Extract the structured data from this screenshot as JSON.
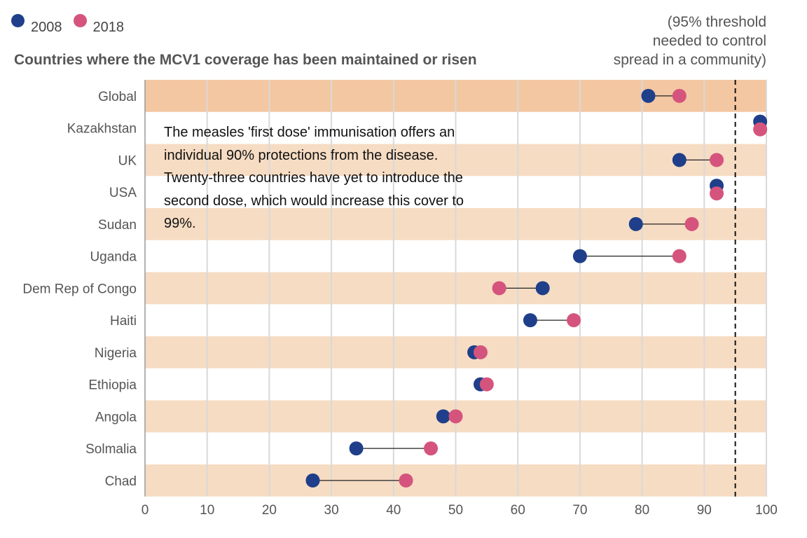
{
  "legend": {
    "items": [
      {
        "label": "2008",
        "color": "#1f3f8a"
      },
      {
        "label": "2018",
        "color": "#d5547d"
      }
    ]
  },
  "subtitle": "Countries where the MCV1 coverage has been maintained or risen",
  "threshold_note": [
    "(95% threshold",
    "needed to control",
    "spread in a community)"
  ],
  "annotation": "The measles 'first dose' immunisation offers an individual 90% protections from the disease. Twenty-three countries have yet to introduce the second dose, which would increase this cover to 99%.",
  "colors": {
    "band": "#f6dcc3",
    "band_highlight": "#f3c7a2",
    "series_2008": "#1f3f8a",
    "series_2018": "#d5547d",
    "grid": "#d9d9d9"
  },
  "chart_data": {
    "type": "dumbbell",
    "title": "",
    "xlabel": "",
    "ylabel": "",
    "xlim": [
      0,
      100
    ],
    "xticks": [
      0,
      10,
      20,
      30,
      40,
      50,
      60,
      70,
      80,
      90,
      100
    ],
    "threshold": 95,
    "grid": true,
    "legend_position": "top-left",
    "categories": [
      "Global",
      "Kazakhstan",
      "UK",
      "USA",
      "Sudan",
      "Uganda",
      "Dem Rep of Congo",
      "Haiti",
      "Nigeria",
      "Ethiopia",
      "Angola",
      "Solmalia",
      "Chad"
    ],
    "series": [
      {
        "name": "2008",
        "values": [
          81,
          99,
          86,
          92,
          79,
          70,
          64,
          62,
          53,
          54,
          48,
          34,
          27
        ]
      },
      {
        "name": "2018",
        "values": [
          86,
          99,
          92,
          92,
          88,
          86,
          57,
          69,
          54,
          55,
          50,
          46,
          42
        ]
      }
    ]
  }
}
